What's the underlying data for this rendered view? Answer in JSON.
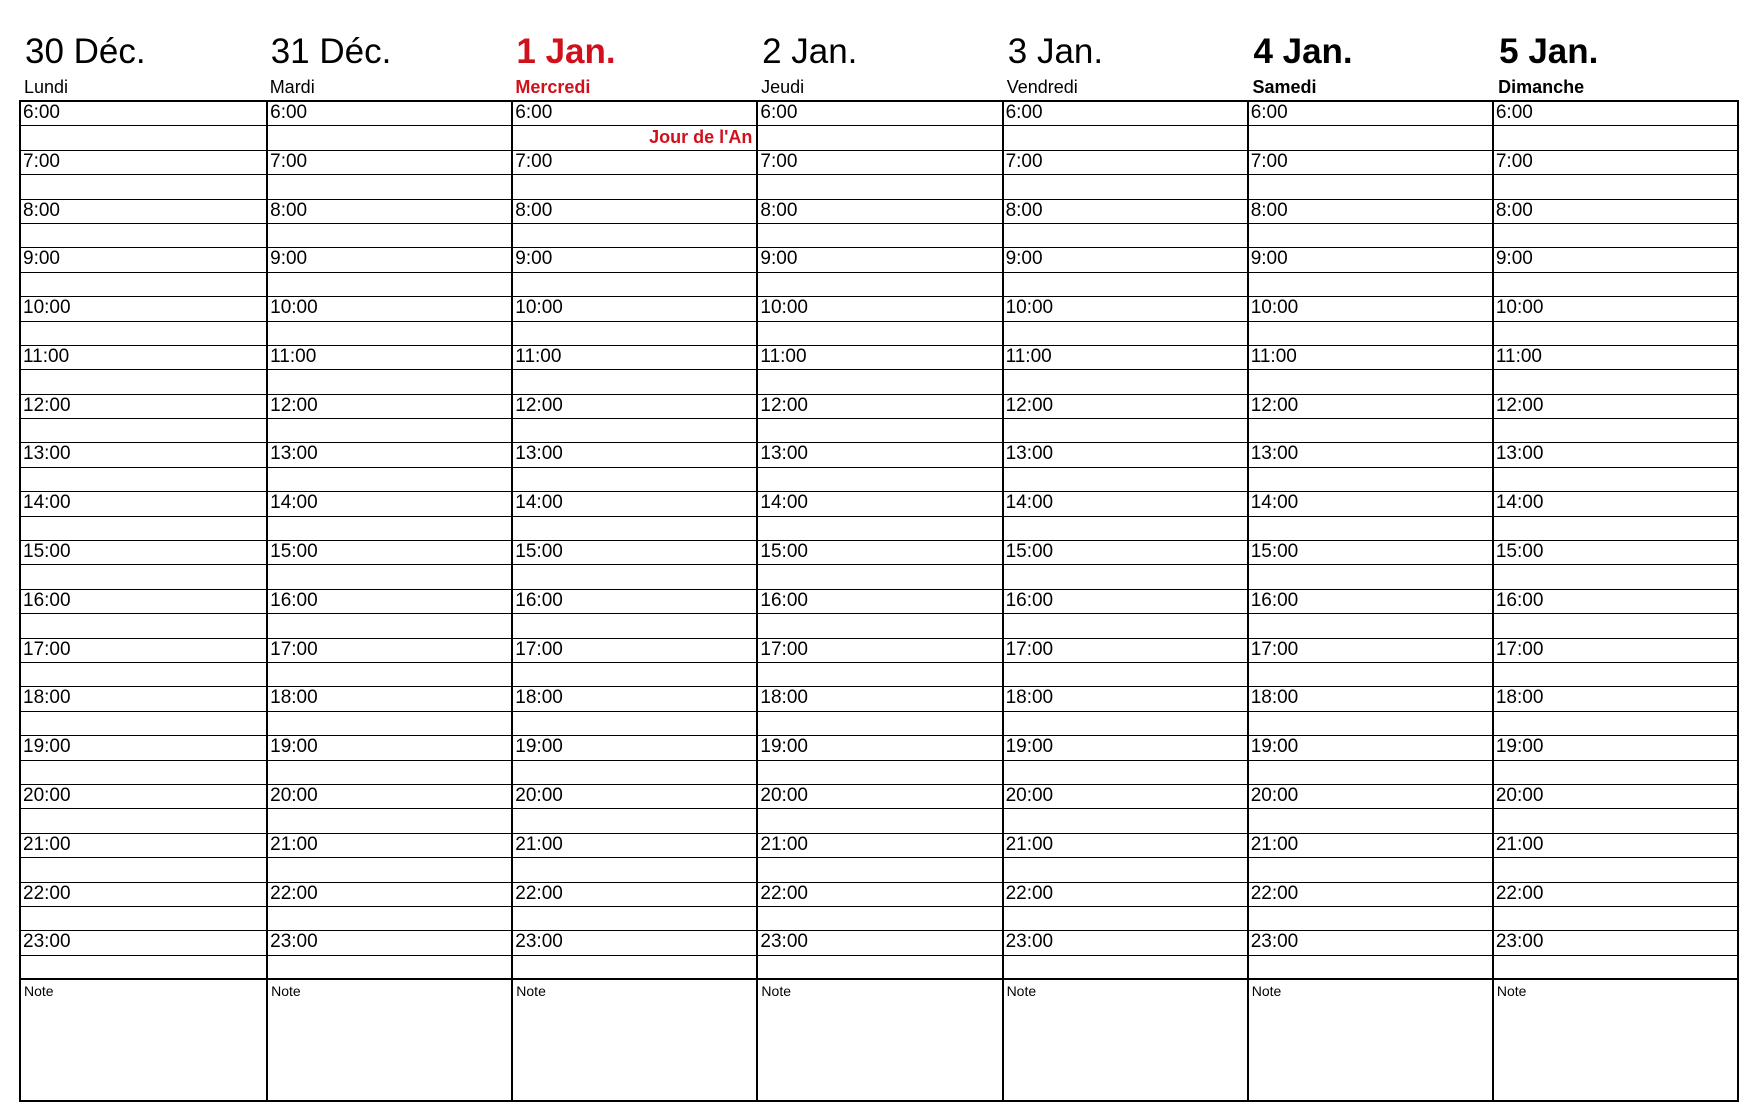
{
  "days": [
    {
      "date": "30 Déc.",
      "weekday": "Lundi",
      "style": "normal",
      "event": ""
    },
    {
      "date": "31 Déc.",
      "weekday": "Mardi",
      "style": "normal",
      "event": ""
    },
    {
      "date": "1 Jan.",
      "weekday": "Mercredi",
      "style": "holiday",
      "event": "Jour de l'An"
    },
    {
      "date": "2 Jan.",
      "weekday": "Jeudi",
      "style": "normal",
      "event": ""
    },
    {
      "date": "3 Jan.",
      "weekday": "Vendredi",
      "style": "normal",
      "event": ""
    },
    {
      "date": "4 Jan.",
      "weekday": "Samedi",
      "style": "weekend",
      "event": ""
    },
    {
      "date": "5 Jan.",
      "weekday": "Dimanche",
      "style": "weekend",
      "event": ""
    }
  ],
  "hours": [
    "6:00",
    "7:00",
    "8:00",
    "9:00",
    "10:00",
    "11:00",
    "12:00",
    "13:00",
    "14:00",
    "15:00",
    "16:00",
    "17:00",
    "18:00",
    "19:00",
    "20:00",
    "21:00",
    "22:00",
    "23:00"
  ],
  "note_label": "Note",
  "colors": {
    "holiday": "#d0101b",
    "grid": "#000000"
  }
}
